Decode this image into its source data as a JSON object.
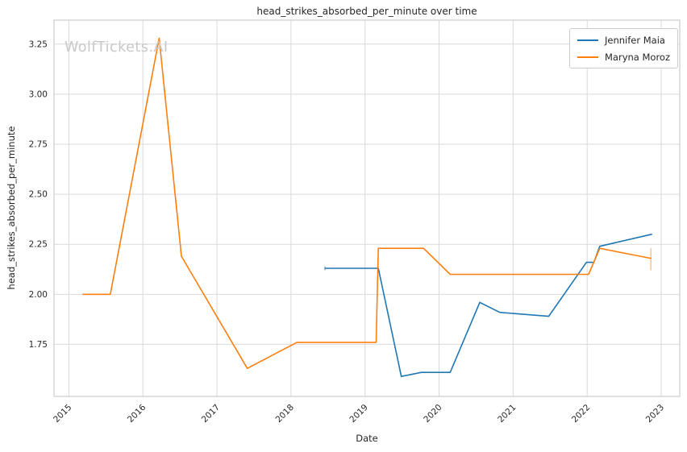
{
  "figure": {
    "watermark": "WolfTickets.AI"
  },
  "chart_data": {
    "type": "line",
    "title": "head_strikes_absorbed_per_minute over time",
    "xlabel": "Date",
    "ylabel": "head_strikes_absorbed_per_minute",
    "xlim": [
      2014.8,
      2023.25
    ],
    "ylim": [
      1.49,
      3.37
    ],
    "grid": true,
    "legend_position": "upper right",
    "x_ticks": {
      "values": [
        2015,
        2016,
        2017,
        2018,
        2019,
        2020,
        2021,
        2022,
        2023
      ],
      "labels": [
        "2015",
        "2016",
        "2017",
        "2018",
        "2019",
        "2020",
        "2021",
        "2022",
        "2023"
      ]
    },
    "y_ticks": {
      "values": [
        1.75,
        2.0,
        2.25,
        2.5,
        2.75,
        3.0,
        3.25
      ],
      "labels": [
        "1.75",
        "2.00",
        "2.25",
        "2.50",
        "2.75",
        "3.00",
        "3.25"
      ]
    },
    "series": [
      {
        "name": "Jennifer Maia",
        "color": "#1f77b4",
        "x": [
          2018.46,
          2019.18,
          2019.49,
          2019.76,
          2020.15,
          2020.55,
          2020.82,
          2021.48,
          2021.99,
          2022.09,
          2022.17,
          2022.87
        ],
        "y": [
          2.13,
          2.13,
          1.59,
          1.61,
          1.61,
          1.96,
          1.91,
          1.89,
          2.16,
          2.16,
          2.24,
          2.3
        ],
        "error_bars": [
          {
            "x": 2018.46,
            "low": 2.12,
            "high": 2.14
          }
        ]
      },
      {
        "name": "Maryna Moroz",
        "color": "#ff7f0e",
        "x": [
          2015.19,
          2015.56,
          2016.22,
          2016.52,
          2017.41,
          2018.08,
          2019.15,
          2019.18,
          2019.79,
          2020.15,
          2022.02,
          2022.17,
          2022.86
        ],
        "y": [
          2.0,
          2.0,
          3.28,
          2.19,
          1.63,
          1.76,
          1.76,
          2.23,
          2.23,
          2.1,
          2.1,
          2.23,
          2.18
        ],
        "error_bars": [
          {
            "x": 2022.86,
            "low": 2.12,
            "high": 2.23
          }
        ]
      }
    ],
    "colors": {
      "grid": "#d9d9d9",
      "spine": "#cccccc",
      "text": "#262626",
      "watermark": "#c9c9c9",
      "background": "#ffffff"
    }
  }
}
